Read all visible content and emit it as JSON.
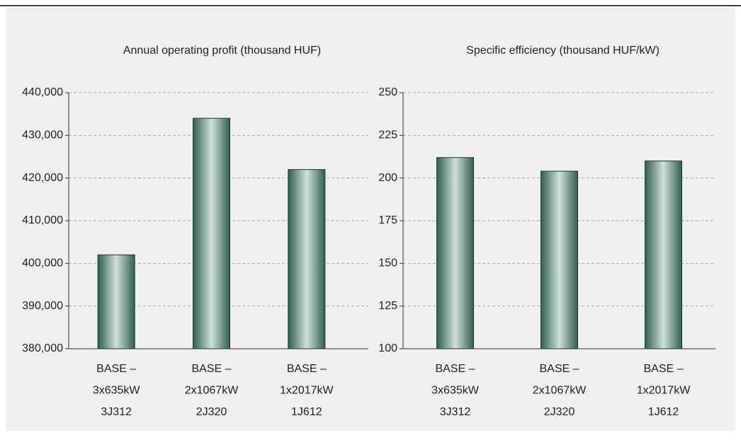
{
  "chart_data": [
    {
      "type": "bar",
      "title": "Annual operating profit (thousand HUF)",
      "categories": [
        [
          "BASE –",
          "3x635kW",
          "3J312"
        ],
        [
          "BASE –",
          "2x1067kW",
          "2J320"
        ],
        [
          "BASE –",
          "1x2017kW",
          "1J612"
        ]
      ],
      "values": [
        402000,
        434000,
        422000
      ],
      "ylim": [
        380000,
        440000
      ],
      "yticks": [
        {
          "value": 380000,
          "label": "380,000"
        },
        {
          "value": 390000,
          "label": "390,000"
        },
        {
          "value": 400000,
          "label": "400,000"
        },
        {
          "value": 410000,
          "label": "410,000"
        },
        {
          "value": 420000,
          "label": "420,000"
        },
        {
          "value": 430000,
          "label": "430,000"
        },
        {
          "value": 440000,
          "label": "440,000"
        }
      ],
      "grid": true,
      "color": "#3d6e5e"
    },
    {
      "type": "bar",
      "title": "Specific efficiency (thousand HUF/kW)",
      "categories": [
        [
          "BASE –",
          "3x635kW",
          "3J312"
        ],
        [
          "BASE –",
          "2x1067kW",
          "2J320"
        ],
        [
          "BASE –",
          "1x2017kW",
          "1J612"
        ]
      ],
      "values": [
        212,
        204,
        210
      ],
      "ylim": [
        100,
        250
      ],
      "yticks": [
        100,
        125,
        150,
        175,
        200,
        225,
        250
      ],
      "grid": true,
      "color": "#3d6e5e"
    }
  ]
}
